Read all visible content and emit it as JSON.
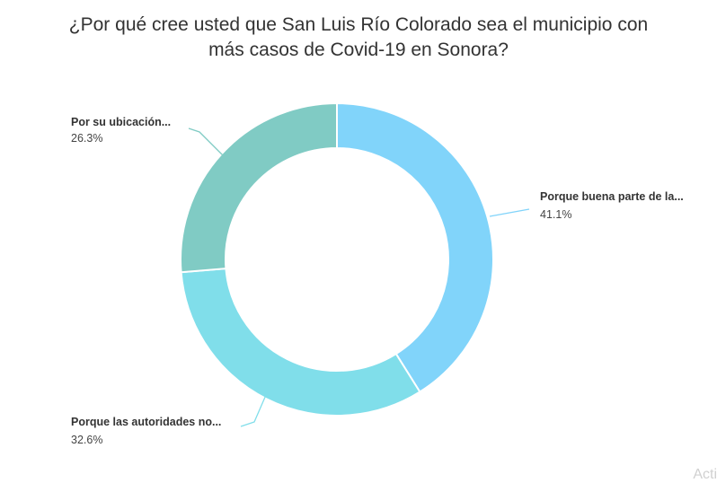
{
  "chart_data": {
    "type": "pie",
    "title_line1": "¿Por qué cree usted que San Luis Río Colorado sea el municipio con",
    "title_line2": "más casos de Covid-19 en Sonora?",
    "slices": [
      {
        "label": "Porque buena parte de la...",
        "pct_text": "41.1%",
        "value": 41.1,
        "color": "#81d4fa"
      },
      {
        "label": "Porque las autoridades no...",
        "pct_text": "32.6%",
        "value": 32.6,
        "color": "#80deea"
      },
      {
        "label": "Por su ubicación...",
        "pct_text": "26.3%",
        "value": 26.3,
        "color": "#80cbc4"
      }
    ]
  },
  "watermark": "Activ"
}
